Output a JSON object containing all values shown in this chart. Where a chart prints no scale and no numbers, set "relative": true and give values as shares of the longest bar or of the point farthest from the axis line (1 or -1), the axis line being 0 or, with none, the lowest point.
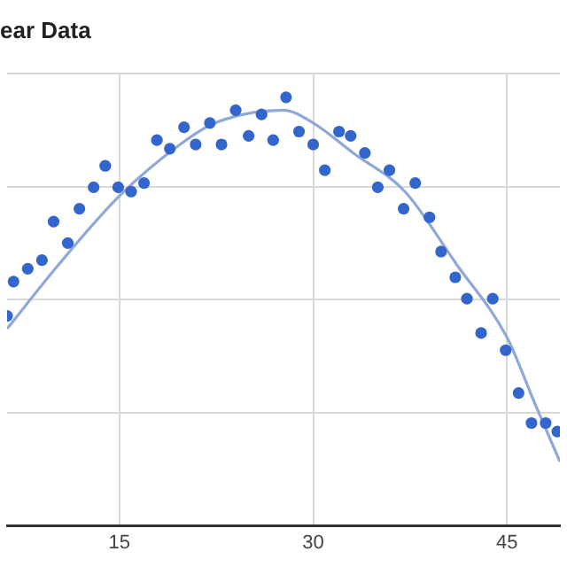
{
  "chart_data": {
    "type": "scatter",
    "title": "ear Data",
    "relative": true,
    "xlim": [
      6.3,
      49.1
    ],
    "xticks": [
      15,
      30,
      45
    ],
    "grid": true,
    "legend": false,
    "marker": "circle",
    "series": [
      {
        "color": "#3366cc",
        "x": [
          6.3,
          6.8,
          7.9,
          9.0,
          9.9,
          11.0,
          11.9,
          13.0,
          13.9,
          14.9,
          15.9,
          16.9,
          17.9,
          18.9,
          20.0,
          20.9,
          22.0,
          22.9,
          24.0,
          25.0,
          26.0,
          26.9,
          27.9,
          28.9,
          30.0,
          30.9,
          32.0,
          32.9,
          34.0,
          35.0,
          35.9,
          37.0,
          37.9,
          39.0,
          39.9,
          41.0,
          41.9,
          43.0,
          43.9,
          44.9,
          45.9,
          46.9,
          48.0,
          48.9
        ],
        "values": [
          0.49,
          0.57,
          0.6,
          0.62,
          0.71,
          0.66,
          0.74,
          0.79,
          0.84,
          0.79,
          0.78,
          0.8,
          0.9,
          0.88,
          0.93,
          0.89,
          0.94,
          0.89,
          0.97,
          0.91,
          0.96,
          0.9,
          1,
          0.92,
          0.89,
          0.83,
          0.92,
          0.91,
          0.87,
          0.79,
          0.83,
          0.74,
          0.8,
          0.72,
          0.64,
          0.58,
          0.53,
          0.45,
          0.53,
          0.41,
          0.31,
          0.24,
          0.24,
          0.22
        ]
      },
      {
        "type": "line",
        "marker": "none",
        "color": "#8fa8d8",
        "x": [
          6.3,
          10.3,
          15,
          19.7,
          22.4,
          27.7,
          30,
          33.1,
          37.1,
          41.1,
          45,
          47.1,
          49.1
        ],
        "values": [
          0.46,
          0.61,
          0.77,
          0.89,
          0.94,
          0.97,
          0.94,
          0.87,
          0.78,
          0.61,
          0.44,
          0.29,
          0.15
        ]
      }
    ]
  }
}
